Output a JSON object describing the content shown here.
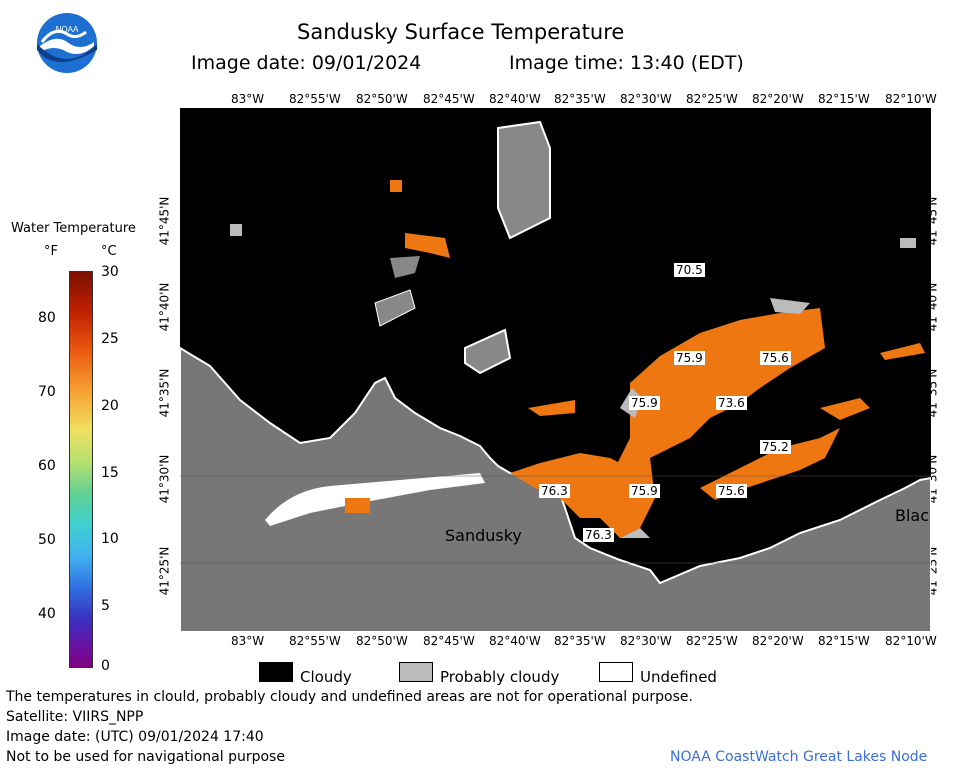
{
  "header": {
    "title": "Sandusky Surface Temperature",
    "image_date": "Image date: 09/01/2024",
    "image_time": "Image time: 13:40 (EDT)"
  },
  "logo": {
    "text": "NOAA",
    "icon": "noaa-logo-icon"
  },
  "colorbar": {
    "title": "Water Temperature",
    "unit_f": "°F",
    "unit_c": "°C",
    "f_ticks": [
      "80",
      "70",
      "60",
      "50",
      "40"
    ],
    "c_ticks": [
      "30",
      "25",
      "20",
      "15",
      "10",
      "5",
      "0"
    ]
  },
  "map": {
    "lon_ticks": [
      "83°W",
      "82°55'W",
      "82°50'W",
      "82°45'W",
      "82°40'W",
      "82°35'W",
      "82°30'W",
      "82°25'W",
      "82°20'W",
      "82°15'W",
      "82°10'W"
    ],
    "lat_ticks": [
      "41°45'N",
      "41°40'N",
      "41°35'N",
      "41°30'N",
      "41°25'N"
    ],
    "place_labels": [
      "Sandusky",
      "Blac"
    ],
    "temperature_labels": [
      "70.5",
      "75.9",
      "75.6",
      "75.9",
      "73.6",
      "75.2",
      "76.3",
      "75.9",
      "75.6",
      "76.3"
    ],
    "colors": {
      "land": "#777777",
      "cloud": "#000000",
      "probably_cloudy": "#bbbbbb",
      "water_warm": "#ee7711"
    }
  },
  "legend": {
    "cloudy": "Cloudy",
    "probably_cloudy": "Probably cloudy",
    "undefined": "Undefined"
  },
  "footer": {
    "disclaimer": "The temperatures in clould, probably cloudy and undefined areas are not for operational purpose.",
    "satellite": "Satellite: VIIRS_NPP",
    "utc_date": "Image date: (UTC) 09/01/2024  17:40",
    "nav_warning": "Not to be used for navigational purpose",
    "source": "NOAA CoastWatch Great Lakes Node"
  }
}
